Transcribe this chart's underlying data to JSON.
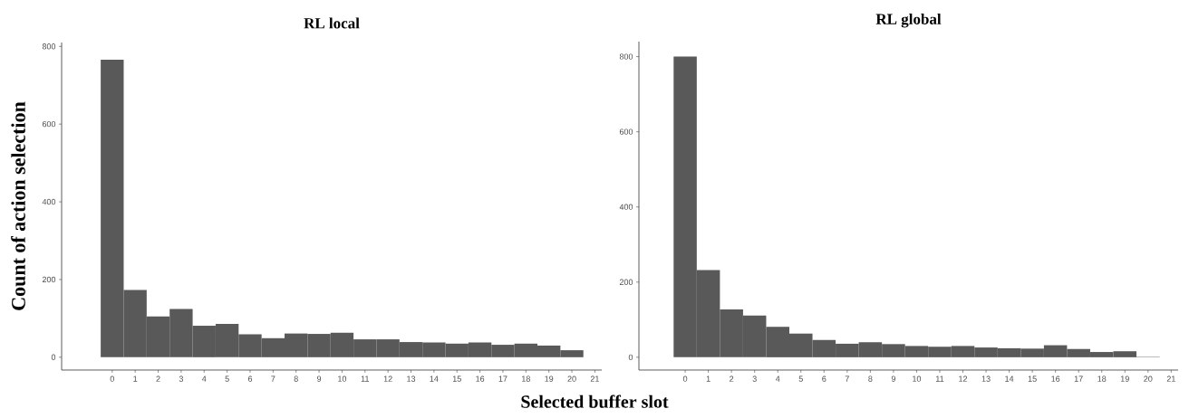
{
  "chart_data": [
    {
      "type": "histogram",
      "title": "RL local",
      "ylabel": "Count of action selection",
      "xlabel": "Selected buffer slot",
      "color": "#595959",
      "bins": [
        -0.5,
        0.5,
        1.5,
        2.5,
        3.5,
        4.5,
        5.5,
        6.5,
        7.5,
        8.5,
        9.5,
        10.5,
        11.5,
        12.5,
        13.5,
        14.5,
        15.5,
        16.5,
        17.5,
        18.5,
        19.5,
        20.5
      ],
      "values": [
        766,
        173,
        105,
        124,
        81,
        86,
        59,
        49,
        61,
        60,
        63,
        46,
        46,
        39,
        38,
        35,
        38,
        32,
        35,
        30,
        18
      ],
      "xlim": [
        -2.2,
        21.3
      ],
      "ylim": [
        -33,
        810
      ],
      "xticks": [
        0,
        1,
        2,
        3,
        4,
        5,
        6,
        7,
        8,
        9,
        10,
        11,
        12,
        13,
        14,
        15,
        16,
        17,
        18,
        19,
        20,
        21
      ],
      "yticks": [
        0,
        200,
        400,
        600,
        800
      ]
    },
    {
      "type": "histogram",
      "title": "RL global",
      "color": "#595959",
      "bins": [
        -0.5,
        0.5,
        1.5,
        2.5,
        3.5,
        4.5,
        5.5,
        6.5,
        7.5,
        8.5,
        9.5,
        10.5,
        11.5,
        12.5,
        13.5,
        14.5,
        15.5,
        16.5,
        17.5,
        18.5,
        19.5,
        20.5
      ],
      "values": [
        800,
        232,
        127,
        111,
        81,
        63,
        46,
        36,
        40,
        35,
        30,
        28,
        30,
        26,
        24,
        23,
        32,
        22,
        14,
        16,
        1
      ],
      "xlim": [
        -2.0,
        21.3
      ],
      "ylim": [
        -34,
        840
      ],
      "xticks": [
        0,
        1,
        2,
        3,
        4,
        5,
        6,
        7,
        8,
        9,
        10,
        11,
        12,
        13,
        14,
        15,
        16,
        17,
        18,
        19,
        20,
        21
      ],
      "yticks": [
        0,
        200,
        400,
        600,
        800
      ]
    }
  ]
}
